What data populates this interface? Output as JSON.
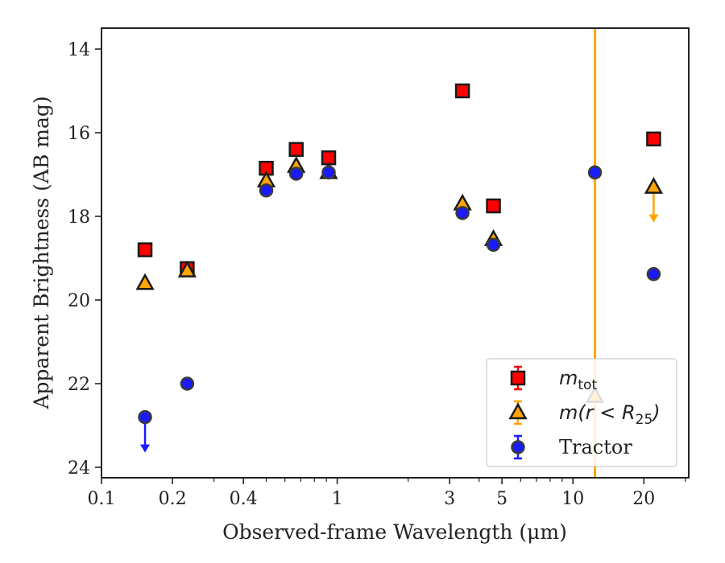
{
  "chart_data": {
    "type": "scatter",
    "xlabel": "Observed-frame Wavelength (μm)",
    "ylabel": "Apparent Brightness (AB mag)",
    "xscale": "log",
    "xlim": [
      0.1,
      31
    ],
    "ylim": [
      24.25,
      13.5
    ],
    "y_inverted": true,
    "x_ticks": [
      0.1,
      0.2,
      0.4,
      1,
      3,
      5,
      10,
      20
    ],
    "x_tick_labels": [
      "0.1",
      "0.2",
      "0.4",
      "1",
      "3",
      "5",
      "10",
      "20"
    ],
    "y_ticks": [
      14,
      16,
      18,
      20,
      22,
      24
    ],
    "y_tick_labels": [
      "14",
      "16",
      "18",
      "20",
      "22",
      "24"
    ],
    "grid": false,
    "legend_position": "lower-right",
    "vertical_line": {
      "x": 12.4,
      "color": "#FFA500"
    },
    "series": [
      {
        "name": "m_tot",
        "label_base": "m",
        "label_sub": "tot",
        "marker": "square",
        "face": "#FF0000",
        "edge": "#1a1a1a",
        "err_color": "#FF0000",
        "points": [
          {
            "x": 0.153,
            "y": 18.8
          },
          {
            "x": 0.231,
            "y": 19.25
          },
          {
            "x": 0.5,
            "y": 16.85
          },
          {
            "x": 0.67,
            "y": 16.4
          },
          {
            "x": 0.92,
            "y": 16.6
          },
          {
            "x": 3.4,
            "y": 15.0
          },
          {
            "x": 4.6,
            "y": 17.75
          },
          {
            "x": 22.0,
            "y": 16.15
          }
        ]
      },
      {
        "name": "m(r < R25)",
        "label_base": "m(r < R",
        "label_sub": "25",
        "label_end": ")",
        "marker": "triangle",
        "face": "#FFA500",
        "edge": "#1a1a1a",
        "err_color": "#FFA500",
        "points": [
          {
            "x": 0.153,
            "y": 19.6
          },
          {
            "x": 0.231,
            "y": 19.3
          },
          {
            "x": 0.5,
            "y": 17.15
          },
          {
            "x": 0.67,
            "y": 16.8
          },
          {
            "x": 0.92,
            "y": 16.95
          },
          {
            "x": 3.4,
            "y": 17.7
          },
          {
            "x": 4.6,
            "y": 18.55
          },
          {
            "x": 12.4,
            "y": 22.3
          },
          {
            "x": 22.0,
            "y": 17.3,
            "upper_limit": true
          }
        ]
      },
      {
        "name": "Tractor",
        "marker": "circle",
        "face": "#1a1aff",
        "edge": "#3a3a3a",
        "err_color": "#1a1aff",
        "points": [
          {
            "x": 0.153,
            "y": 22.8,
            "upper_limit": true
          },
          {
            "x": 0.231,
            "y": 22.0
          },
          {
            "x": 0.5,
            "y": 17.38
          },
          {
            "x": 0.67,
            "y": 16.98
          },
          {
            "x": 0.92,
            "y": 16.95
          },
          {
            "x": 3.4,
            "y": 17.92
          },
          {
            "x": 4.6,
            "y": 18.68
          },
          {
            "x": 12.4,
            "y": 16.95
          },
          {
            "x": 22.0,
            "y": 19.38
          }
        ]
      }
    ]
  }
}
